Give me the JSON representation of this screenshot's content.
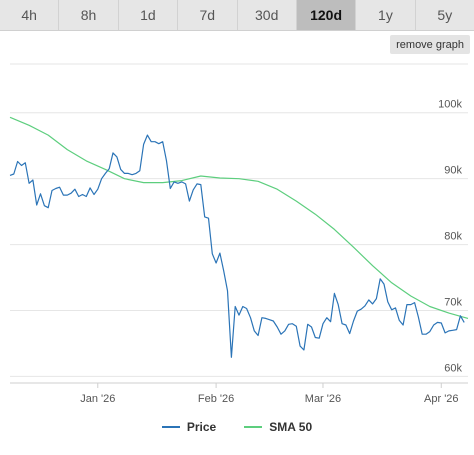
{
  "range_tabs": [
    {
      "label": "4h",
      "active": false
    },
    {
      "label": "8h",
      "active": false
    },
    {
      "label": "1d",
      "active": false
    },
    {
      "label": "7d",
      "active": false
    },
    {
      "label": "30d",
      "active": false
    },
    {
      "label": "120d",
      "active": true
    },
    {
      "label": "1y",
      "active": false
    },
    {
      "label": "5y",
      "active": false
    }
  ],
  "remove_graph_label": "remove graph",
  "colors": {
    "price": "#2b74b7",
    "sma": "#5dce7e",
    "grid": "#e6e6e6",
    "axis_text": "#555555"
  },
  "chart_data": {
    "type": "line",
    "x_tick_labels": [
      "Jan '26",
      "Feb '26",
      "Mar '26",
      "Apr '26"
    ],
    "x_tick_dates": [
      "2026-01-01",
      "2026-02-01",
      "2026-03-01",
      "2026-04-01"
    ],
    "x_range": [
      "2025-12-09",
      "2026-04-08"
    ],
    "y_ticks": [
      60000,
      70000,
      80000,
      90000,
      100000
    ],
    "y_tick_labels": [
      "60k",
      "70k",
      "80k",
      "90k",
      "100k"
    ],
    "ylim": [
      59000,
      108000
    ],
    "grid": true,
    "legend_position": "bottom",
    "series": [
      {
        "name": "Price",
        "points": [
          [
            "2025-12-09",
            90.5
          ],
          [
            "2025-12-10",
            90.7
          ],
          [
            "2025-12-11",
            92.6
          ],
          [
            "2025-12-12",
            92.0
          ],
          [
            "2025-12-13",
            92.4
          ],
          [
            "2025-12-14",
            89.3
          ],
          [
            "2025-12-15",
            89.8
          ],
          [
            "2025-12-16",
            86.0
          ],
          [
            "2025-12-17",
            87.7
          ],
          [
            "2025-12-18",
            85.9
          ],
          [
            "2025-12-19",
            85.6
          ],
          [
            "2025-12-20",
            88.2
          ],
          [
            "2025-12-21",
            88.5
          ],
          [
            "2025-12-22",
            88.7
          ],
          [
            "2025-12-23",
            87.5
          ],
          [
            "2025-12-24",
            87.5
          ],
          [
            "2025-12-25",
            87.8
          ],
          [
            "2025-12-26",
            88.4
          ],
          [
            "2025-12-27",
            87.3
          ],
          [
            "2025-12-28",
            87.6
          ],
          [
            "2025-12-29",
            87.3
          ],
          [
            "2025-12-30",
            88.6
          ],
          [
            "2025-12-31",
            87.6
          ],
          [
            "2026-01-01",
            88.4
          ],
          [
            "2026-01-02",
            90.0
          ],
          [
            "2026-01-03",
            90.8
          ],
          [
            "2026-01-04",
            91.5
          ],
          [
            "2026-01-05",
            93.9
          ],
          [
            "2026-01-06",
            93.3
          ],
          [
            "2026-01-07",
            91.4
          ],
          [
            "2026-01-08",
            90.8
          ],
          [
            "2026-01-09",
            90.8
          ],
          [
            "2026-01-10",
            90.6
          ],
          [
            "2026-01-11",
            90.8
          ],
          [
            "2026-01-12",
            91.2
          ],
          [
            "2026-01-13",
            95.2
          ],
          [
            "2026-01-14",
            96.6
          ],
          [
            "2026-01-15",
            95.6
          ],
          [
            "2026-01-16",
            95.6
          ],
          [
            "2026-01-17",
            95.3
          ],
          [
            "2026-01-18",
            95.6
          ],
          [
            "2026-01-19",
            92.7
          ],
          [
            "2026-01-20",
            88.5
          ],
          [
            "2026-01-21",
            89.5
          ],
          [
            "2026-01-22",
            89.3
          ],
          [
            "2026-01-23",
            89.5
          ],
          [
            "2026-01-24",
            89.2
          ],
          [
            "2026-01-25",
            86.6
          ],
          [
            "2026-01-26",
            88.3
          ],
          [
            "2026-01-27",
            89.2
          ],
          [
            "2026-01-28",
            89.1
          ],
          [
            "2026-01-29",
            84.2
          ],
          [
            "2026-01-30",
            84.0
          ],
          [
            "2026-01-31",
            78.6
          ],
          [
            "2026-02-01",
            77.2
          ],
          [
            "2026-02-02",
            78.7
          ],
          [
            "2026-02-03",
            76.0
          ],
          [
            "2026-02-04",
            73.0
          ],
          [
            "2026-02-05",
            62.9
          ],
          [
            "2026-02-06",
            70.6
          ],
          [
            "2026-02-07",
            69.3
          ],
          [
            "2026-02-08",
            70.6
          ],
          [
            "2026-02-09",
            70.3
          ],
          [
            "2026-02-10",
            68.9
          ],
          [
            "2026-02-11",
            66.9
          ],
          [
            "2026-02-12",
            66.2
          ],
          [
            "2026-02-13",
            68.9
          ],
          [
            "2026-02-14",
            68.8
          ],
          [
            "2026-02-15",
            68.6
          ],
          [
            "2026-02-16",
            68.4
          ],
          [
            "2026-02-17",
            67.5
          ],
          [
            "2026-02-18",
            66.4
          ],
          [
            "2026-02-19",
            66.9
          ],
          [
            "2026-02-20",
            67.9
          ],
          [
            "2026-02-21",
            68.0
          ],
          [
            "2026-02-22",
            67.6
          ],
          [
            "2026-02-23",
            64.6
          ],
          [
            "2026-02-24",
            64.0
          ],
          [
            "2026-02-25",
            67.9
          ],
          [
            "2026-02-26",
            67.5
          ],
          [
            "2026-02-27",
            65.9
          ],
          [
            "2026-02-28",
            65.8
          ],
          [
            "2026-03-01",
            68.0
          ],
          [
            "2026-03-02",
            68.9
          ],
          [
            "2026-03-03",
            68.3
          ],
          [
            "2026-03-04",
            72.6
          ],
          [
            "2026-03-05",
            70.9
          ],
          [
            "2026-03-06",
            68.0
          ],
          [
            "2026-03-07",
            67.8
          ],
          [
            "2026-03-08",
            66.5
          ],
          [
            "2026-03-09",
            68.4
          ],
          [
            "2026-03-10",
            69.9
          ],
          [
            "2026-03-11",
            70.2
          ],
          [
            "2026-03-12",
            70.7
          ],
          [
            "2026-03-13",
            71.6
          ],
          [
            "2026-03-14",
            71.0
          ],
          [
            "2026-03-15",
            71.8
          ],
          [
            "2026-03-16",
            74.8
          ],
          [
            "2026-03-17",
            74.0
          ],
          [
            "2026-03-18",
            71.3
          ],
          [
            "2026-03-19",
            70.1
          ],
          [
            "2026-03-20",
            70.4
          ],
          [
            "2026-03-21",
            68.5
          ],
          [
            "2026-03-22",
            67.8
          ],
          [
            "2026-03-23",
            70.9
          ],
          [
            "2026-03-24",
            70.9
          ],
          [
            "2026-03-25",
            71.2
          ],
          [
            "2026-03-26",
            69.0
          ],
          [
            "2026-03-27",
            66.4
          ],
          [
            "2026-03-28",
            66.4
          ],
          [
            "2026-03-29",
            66.8
          ],
          [
            "2026-03-30",
            67.8
          ],
          [
            "2026-03-31",
            68.2
          ],
          [
            "2026-04-01",
            68.1
          ],
          [
            "2026-04-02",
            66.6
          ],
          [
            "2026-04-03",
            66.9
          ],
          [
            "2026-04-04",
            67.0
          ],
          [
            "2026-04-05",
            67.1
          ],
          [
            "2026-04-06",
            69.2
          ],
          [
            "2026-04-07",
            68.2
          ]
        ]
      },
      {
        "name": "SMA 50",
        "points": [
          [
            "2025-12-09",
            99.3
          ],
          [
            "2025-12-14",
            98.1
          ],
          [
            "2025-12-19",
            96.6
          ],
          [
            "2025-12-24",
            94.4
          ],
          [
            "2025-12-29",
            92.7
          ],
          [
            "2026-01-03",
            91.4
          ],
          [
            "2026-01-08",
            90.0
          ],
          [
            "2026-01-13",
            89.4
          ],
          [
            "2026-01-18",
            89.4
          ],
          [
            "2026-01-23",
            89.7
          ],
          [
            "2026-01-28",
            90.4
          ],
          [
            "2026-02-02",
            90.1
          ],
          [
            "2026-02-07",
            90.0
          ],
          [
            "2026-02-12",
            89.6
          ],
          [
            "2026-02-17",
            88.4
          ],
          [
            "2026-02-22",
            86.6
          ],
          [
            "2026-02-27",
            84.6
          ],
          [
            "2026-03-04",
            82.3
          ],
          [
            "2026-03-09",
            79.6
          ],
          [
            "2026-03-14",
            76.8
          ],
          [
            "2026-03-19",
            74.2
          ],
          [
            "2026-03-24",
            72.2
          ],
          [
            "2026-03-29",
            70.6
          ],
          [
            "2026-04-03",
            69.6
          ],
          [
            "2026-04-08",
            68.8
          ]
        ]
      }
    ]
  }
}
